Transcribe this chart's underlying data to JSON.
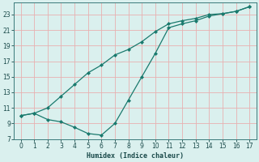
{
  "xlabel": "Humidex (Indice chaleur)",
  "background_color": "#daf0ee",
  "grid_color_major": "#e8b0b0",
  "grid_color_minor": "#e8d0d0",
  "line_color": "#1a7a6e",
  "xlim": [
    -0.5,
    17.5
  ],
  "ylim": [
    7,
    24.5
  ],
  "yticks": [
    7,
    9,
    11,
    13,
    15,
    17,
    19,
    21,
    23
  ],
  "xticks": [
    0,
    1,
    2,
    3,
    4,
    5,
    6,
    7,
    8,
    9,
    10,
    11,
    12,
    13,
    14,
    15,
    16,
    17
  ],
  "line1_x": [
    0,
    1,
    2,
    3,
    4,
    5,
    6,
    7,
    8,
    9,
    10,
    11,
    12,
    13,
    14,
    15,
    16,
    17
  ],
  "line1_y": [
    10.0,
    10.3,
    11.0,
    12.5,
    14.0,
    15.5,
    16.5,
    17.8,
    18.5,
    19.5,
    20.8,
    21.8,
    22.2,
    22.5,
    23.0,
    23.1,
    23.4,
    24.0
  ],
  "line2_x": [
    0,
    1,
    2,
    3,
    4,
    5,
    6,
    7,
    8,
    9,
    10,
    11,
    12,
    13,
    14,
    15,
    16,
    17
  ],
  "line2_y": [
    10.0,
    10.3,
    9.5,
    9.2,
    8.5,
    7.7,
    7.5,
    9.0,
    12.0,
    15.0,
    18.0,
    21.3,
    21.8,
    22.2,
    22.8,
    23.1,
    23.4,
    24.0
  ],
  "tick_labelsize": 5.5,
  "xlabel_fontsize": 6.0,
  "marker": "D",
  "markersize": 2.0,
  "linewidth": 0.9
}
